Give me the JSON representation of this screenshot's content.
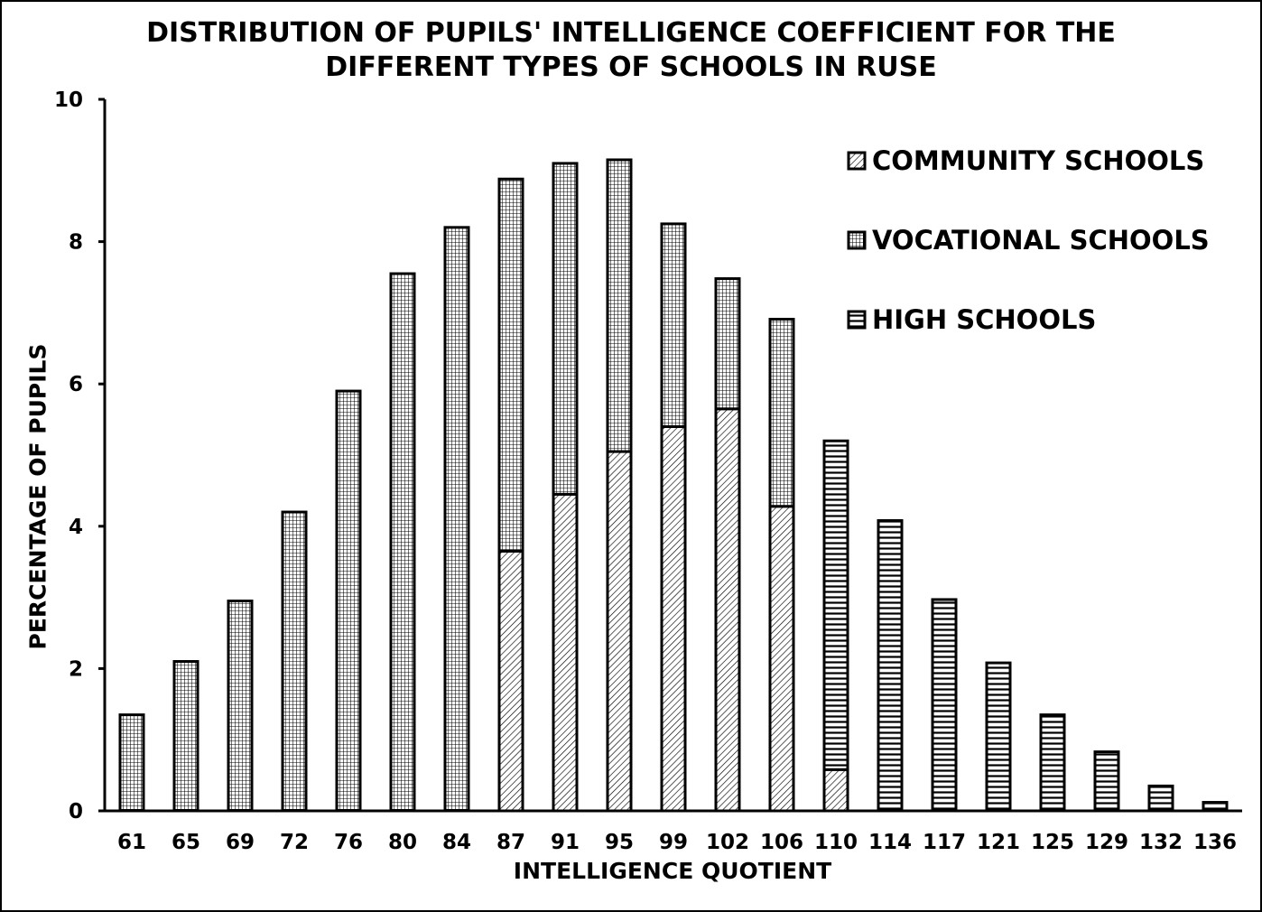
{
  "chart_data": {
    "type": "bar",
    "stacked": true,
    "title_lines": [
      "DISTRIBUTION OF PUPILS' INTELLIGENCE COEFFICIENT FOR THE",
      "DIFFERENT TYPES OF SCHOOLS IN RUSE"
    ],
    "xlabel": "INTELLIGENCE QUOTIENT",
    "ylabel": "PERCENTAGE OF PUPILS",
    "ylim": [
      0,
      10
    ],
    "yticks": [
      "0",
      "2",
      "4",
      "6",
      "8",
      "10"
    ],
    "grid": false,
    "legend_position": "top-right",
    "categories": [
      "61",
      "65",
      "69",
      "72",
      "76",
      "80",
      "84",
      "87",
      "91",
      "95",
      "99",
      "102",
      "106",
      "110",
      "114",
      "117",
      "121",
      "125",
      "129",
      "132",
      "136"
    ],
    "series": [
      {
        "name": "COMMUNITY SCHOOLS",
        "pattern": "diagonal-hatch",
        "values": [
          0,
          0,
          0,
          0,
          0,
          0,
          0,
          3.65,
          4.45,
          5.05,
          5.4,
          5.65,
          4.28,
          0.58,
          0,
          0,
          0,
          0,
          0,
          0,
          0
        ]
      },
      {
        "name": "VOCATIONAL SCHOOLS",
        "pattern": "grid",
        "values": [
          1.35,
          2.1,
          2.95,
          4.2,
          5.9,
          7.55,
          8.2,
          5.23,
          4.65,
          4.1,
          2.85,
          1.83,
          2.63,
          0,
          0,
          0,
          0,
          0,
          0,
          0,
          0
        ]
      },
      {
        "name": "HIGH SCHOOLS",
        "pattern": "horizontal-lines",
        "values": [
          0,
          0,
          0,
          0,
          0,
          0,
          0,
          0,
          0,
          0,
          0,
          0,
          0,
          4.62,
          4.08,
          2.97,
          2.08,
          1.35,
          0.83,
          0.35,
          0.12
        ]
      }
    ]
  }
}
